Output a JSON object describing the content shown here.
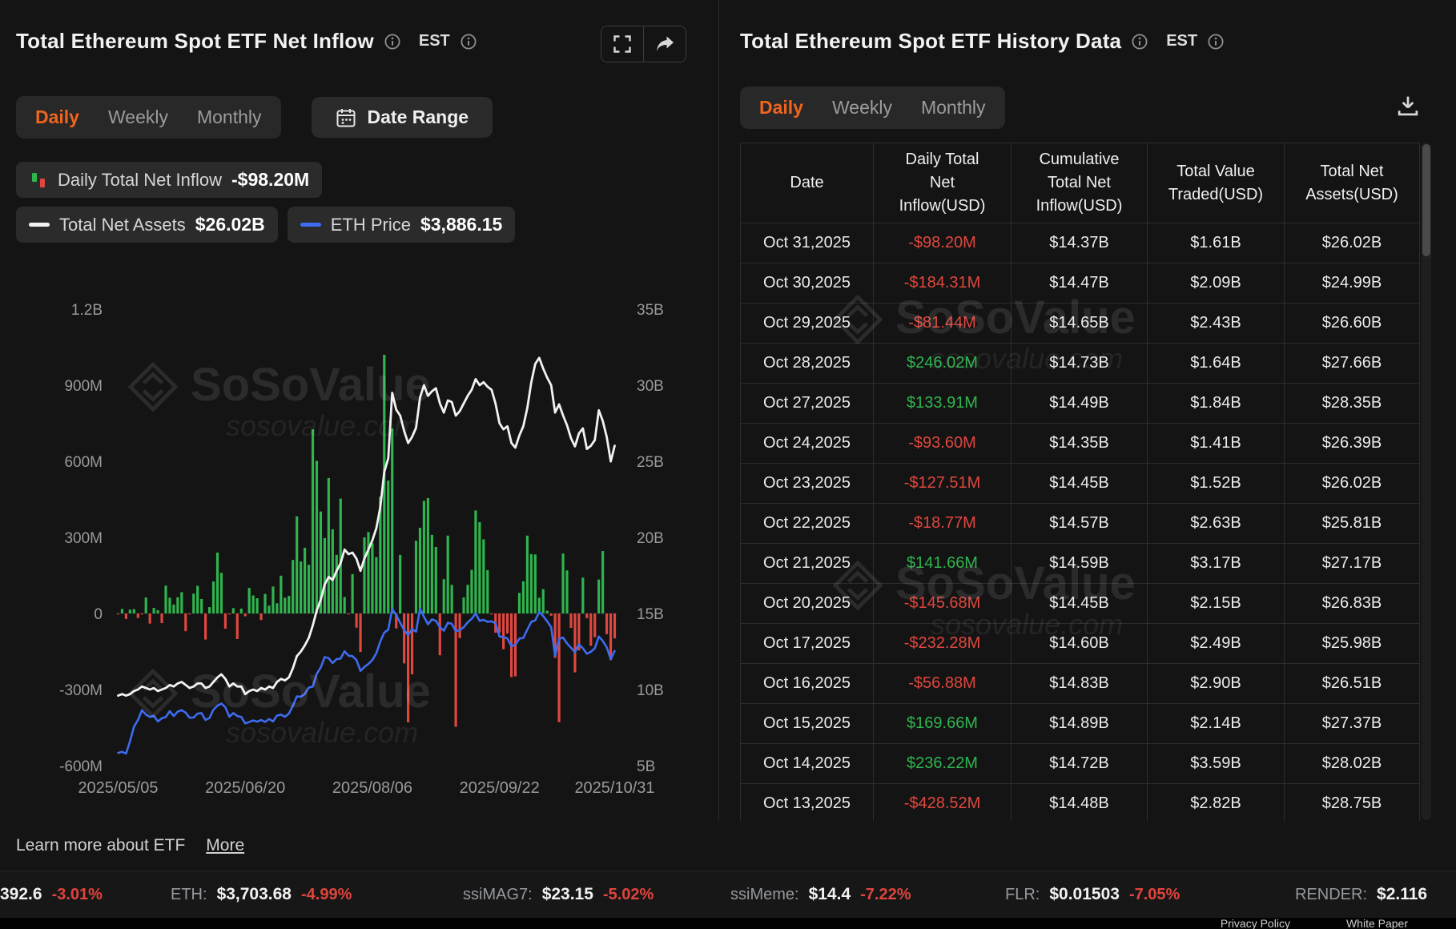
{
  "left_panel": {
    "title": "Total Ethereum Spot ETF Net Inflow",
    "timezone": "EST",
    "tabs": [
      "Daily",
      "Weekly",
      "Monthly"
    ],
    "active_tab": "Daily",
    "date_range": "Date Range",
    "legend": {
      "inflow_label": "Daily Total Net Inflow",
      "inflow_value": "-$98.20M",
      "assets_label": "Total Net Assets",
      "assets_value": "$26.02B",
      "eth_label": "ETH Price",
      "eth_value": "$3,886.15"
    }
  },
  "right_panel": {
    "title": "Total Ethereum Spot ETF History Data",
    "timezone": "EST",
    "tabs": [
      "Daily",
      "Weekly",
      "Monthly"
    ],
    "active_tab": "Daily",
    "table": {
      "headers": [
        "Date",
        "Daily Total\nNet\nInflow(USD)",
        "Cumulative\nTotal Net\nInflow(USD)",
        "Total Value\nTraded(USD)",
        "Total Net\nAssets(USD)"
      ],
      "rows": [
        [
          "Oct 31,2025",
          "-$98.20M",
          "$14.37B",
          "$1.61B",
          "$26.02B"
        ],
        [
          "Oct 30,2025",
          "-$184.31M",
          "$14.47B",
          "$2.09B",
          "$24.99B"
        ],
        [
          "Oct 29,2025",
          "-$81.44M",
          "$14.65B",
          "$2.43B",
          "$26.60B"
        ],
        [
          "Oct 28,2025",
          "$246.02M",
          "$14.73B",
          "$1.64B",
          "$27.66B"
        ],
        [
          "Oct 27,2025",
          "$133.91M",
          "$14.49B",
          "$1.84B",
          "$28.35B"
        ],
        [
          "Oct 24,2025",
          "-$93.60M",
          "$14.35B",
          "$1.41B",
          "$26.39B"
        ],
        [
          "Oct 23,2025",
          "-$127.51M",
          "$14.45B",
          "$1.52B",
          "$26.02B"
        ],
        [
          "Oct 22,2025",
          "-$18.77M",
          "$14.57B",
          "$2.63B",
          "$25.81B"
        ],
        [
          "Oct 21,2025",
          "$141.66M",
          "$14.59B",
          "$3.17B",
          "$27.17B"
        ],
        [
          "Oct 20,2025",
          "-$145.68M",
          "$14.45B",
          "$2.15B",
          "$26.83B"
        ],
        [
          "Oct 17,2025",
          "-$232.28M",
          "$14.60B",
          "$2.49B",
          "$25.98B"
        ],
        [
          "Oct 16,2025",
          "-$56.88M",
          "$14.83B",
          "$2.90B",
          "$26.51B"
        ],
        [
          "Oct 15,2025",
          "$169.66M",
          "$14.89B",
          "$2.14B",
          "$27.37B"
        ],
        [
          "Oct 14,2025",
          "$236.22M",
          "$14.72B",
          "$3.59B",
          "$28.02B"
        ],
        [
          "Oct 13,2025",
          "-$428.52M",
          "$14.48B",
          "$2.82B",
          "$28.75B"
        ]
      ]
    }
  },
  "watermark": {
    "brand": "SoSoValue",
    "domain_text": "sosovalue.com"
  },
  "footer": {
    "learn_text": "Learn more about ETF",
    "more_label": "More",
    "links": [
      "Privacy Policy",
      "White Paper"
    ]
  },
  "ticker": {
    "items": [
      {
        "label": "",
        "value": "392.6",
        "change": "-3.01%"
      },
      {
        "label": "ETH:",
        "value": "$3,703.68",
        "change": "-4.99%"
      },
      {
        "label": "ssiMAG7:",
        "value": "$23.15",
        "change": "-5.02%"
      },
      {
        "label": "ssiMeme:",
        "value": "$14.4",
        "change": "-7.22%"
      },
      {
        "label": "FLR:",
        "value": "$0.01503",
        "change": "-7.05%"
      },
      {
        "label": "RENDER:",
        "value": "$2.116",
        "change": ""
      }
    ]
  },
  "colors": {
    "accent_orange": "#f0641d",
    "green": "#2fb54e",
    "red": "#e0473e",
    "blue": "#3e6cf0",
    "white_line": "#f2f2f2",
    "background": "#141414",
    "border": "#2d2d2d"
  },
  "chart_data": {
    "type": "bar+line",
    "title": "Total Ethereum Spot ETF Net Inflow",
    "grid": false,
    "legend_position": "top-left",
    "series": [
      {
        "name": "Daily Total Net Inflow",
        "type": "bar",
        "axis": "left",
        "unit": "USD millions",
        "key": "daily_net_inflow_musd"
      },
      {
        "name": "Total Net Assets",
        "type": "line",
        "axis": "right",
        "unit": "USD billions",
        "key": "total_net_assets_busd"
      },
      {
        "name": "ETH Price",
        "type": "line",
        "axis": "hidden",
        "unit": "USD",
        "key": "eth_price_usd"
      }
    ],
    "left_axis": {
      "min": -600,
      "max": 1200,
      "ticks": [
        {
          "value": 1200,
          "label": "1.2B"
        },
        {
          "value": 900,
          "label": "900M"
        },
        {
          "value": 600,
          "label": "600M"
        },
        {
          "value": 300,
          "label": "300M"
        },
        {
          "value": 0,
          "label": "0"
        },
        {
          "value": -300,
          "label": "-300M"
        },
        {
          "value": -600,
          "label": "-600M"
        }
      ]
    },
    "right_axis": {
      "min": 5,
      "max": 35,
      "ticks": [
        {
          "value": 35,
          "label": "35B"
        },
        {
          "value": 30,
          "label": "30B"
        },
        {
          "value": 25,
          "label": "25B"
        },
        {
          "value": 20,
          "label": "20B"
        },
        {
          "value": 15,
          "label": "15B"
        },
        {
          "value": 10,
          "label": "10B"
        },
        {
          "value": 5,
          "label": "5B"
        }
      ]
    },
    "eth_price_mapping": {
      "domain_usd": [
        1550,
        10850
      ],
      "maps_to_right_axis_busd": [
        5,
        35
      ]
    },
    "x_label_ticks": [
      {
        "label": "2025/05/05",
        "index": 0
      },
      {
        "label": "2025/06/20",
        "index": 32
      },
      {
        "label": "2025/08/06",
        "index": 64
      },
      {
        "label": "2025/09/22",
        "index": 96
      },
      {
        "label": "2025/10/31",
        "index": 125
      }
    ],
    "dates": [
      "05/05",
      "05/06",
      "05/07",
      "05/08",
      "05/09",
      "05/12",
      "05/13",
      "05/14",
      "05/15",
      "05/16",
      "05/19",
      "05/20",
      "05/21",
      "05/22",
      "05/23",
      "05/27",
      "05/28",
      "05/29",
      "05/30",
      "06/02",
      "06/03",
      "06/04",
      "06/05",
      "06/06",
      "06/09",
      "06/10",
      "06/11",
      "06/12",
      "06/13",
      "06/16",
      "06/17",
      "06/18",
      "06/20",
      "06/23",
      "06/24",
      "06/25",
      "06/26",
      "06/27",
      "06/30",
      "07/01",
      "07/02",
      "07/03",
      "07/07",
      "07/08",
      "07/09",
      "07/10",
      "07/11",
      "07/14",
      "07/15",
      "07/16",
      "07/17",
      "07/18",
      "07/21",
      "07/22",
      "07/23",
      "07/24",
      "07/25",
      "07/28",
      "07/29",
      "07/30",
      "07/31",
      "08/01",
      "08/04",
      "08/05",
      "08/06",
      "08/07",
      "08/08",
      "08/11",
      "08/12",
      "08/13",
      "08/14",
      "08/15",
      "08/18",
      "08/19",
      "08/20",
      "08/21",
      "08/22",
      "08/25",
      "08/26",
      "08/27",
      "08/28",
      "08/29",
      "09/02",
      "09/03",
      "09/04",
      "09/05",
      "09/08",
      "09/09",
      "09/10",
      "09/11",
      "09/12",
      "09/15",
      "09/16",
      "09/17",
      "09/18",
      "09/19",
      "09/22",
      "09/23",
      "09/24",
      "09/25",
      "09/26",
      "09/29",
      "09/30",
      "10/01",
      "10/02",
      "10/03",
      "10/06",
      "10/07",
      "10/08",
      "10/09",
      "10/10",
      "10/13",
      "10/14",
      "10/15",
      "10/16",
      "10/17",
      "10/20",
      "10/21",
      "10/22",
      "10/23",
      "10/24",
      "10/27",
      "10/28",
      "10/29",
      "10/30",
      "10/31"
    ],
    "daily_net_inflow_musd": [
      -2,
      18,
      -22,
      15,
      17,
      -18,
      -4,
      63,
      -40,
      22,
      13,
      -38,
      110,
      62,
      35,
      64,
      84,
      -70,
      -2,
      78,
      109,
      57,
      -103,
      25,
      126,
      240,
      160,
      -60,
      -2,
      21,
      -101,
      19,
      -11,
      101,
      71,
      60,
      -26,
      77,
      31,
      106,
      40,
      149,
      62,
      69,
      211,
      383,
      205,
      259,
      192,
      726,
      602,
      402,
      297,
      534,
      332,
      231,
      453,
      65,
      -1,
      155,
      -56,
      -152,
      300,
      321,
      277,
      222,
      461,
      1020,
      524,
      729,
      -59,
      231,
      -197,
      -429,
      -240,
      287,
      338,
      444,
      455,
      310,
      262,
      -165,
      135,
      307,
      113,
      -447,
      -97,
      63,
      113,
      172,
      406,
      360,
      292,
      171,
      -2,
      -76,
      -76,
      -141,
      -79,
      -251,
      -248,
      81,
      127,
      307,
      234,
      233,
      62,
      96,
      11,
      -9,
      -175,
      -428.52,
      236.22,
      169.66,
      -56.88,
      -232.28,
      -145.68,
      141.66,
      -18.77,
      -127.51,
      -93.6,
      133.91,
      246.02,
      -81.44,
      -184.31,
      -98.2
    ],
    "total_net_assets_busd": [
      9.6,
      9.7,
      9.6,
      9.7,
      9.9,
      10.0,
      10.2,
      10.1,
      10.0,
      10.1,
      9.9,
      10.0,
      10.1,
      10.3,
      10.2,
      10.4,
      10.5,
      10.3,
      10.1,
      10.2,
      10.4,
      10.4,
      10.1,
      10.2,
      10.5,
      10.8,
      11.0,
      10.7,
      10.2,
      10.4,
      10.2,
      10.2,
      9.7,
      9.9,
      10.0,
      9.9,
      10.1,
      10.0,
      10.2,
      10.1,
      10.5,
      10.7,
      10.6,
      10.8,
      11.4,
      12.2,
      12.5,
      12.9,
      13.4,
      14.2,
      15.2,
      15.9,
      16.9,
      17.4,
      17.2,
      17.8,
      18.3,
      19.2,
      18.9,
      19.0,
      18.6,
      17.8,
      18.6,
      19.2,
      19.8,
      20.6,
      22.0,
      24.3,
      25.2,
      29.5,
      28.4,
      28.0,
      27.0,
      26.2,
      26.6,
      27.2,
      29.2,
      30.0,
      29.3,
      29.6,
      29.8,
      28.8,
      28.2,
      29.0,
      28.9,
      28.0,
      28.3,
      28.8,
      29.3,
      29.7,
      30.4,
      30.0,
      30.2,
      29.9,
      29.7,
      28.8,
      27.5,
      27.1,
      27.3,
      26.2,
      25.9,
      26.7,
      27.3,
      28.5,
      30.2,
      31.4,
      31.8,
      31.1,
      30.5,
      30.0,
      28.2,
      28.75,
      28.02,
      27.37,
      26.51,
      25.98,
      26.83,
      27.17,
      25.81,
      26.02,
      26.39,
      28.35,
      27.66,
      26.6,
      24.99,
      26.02
    ],
    "eth_price_usd": [
      1810,
      1832,
      1795,
      2050,
      2345,
      2480,
      2680,
      2590,
      2540,
      2565,
      2450,
      2515,
      2540,
      2660,
      2560,
      2650,
      2680,
      2630,
      2525,
      2530,
      2610,
      2620,
      2480,
      2520,
      2690,
      2770,
      2815,
      2740,
      2545,
      2620,
      2560,
      2540,
      2410,
      2440,
      2470,
      2445,
      2480,
      2440,
      2500,
      2450,
      2570,
      2590,
      2545,
      2610,
      2770,
      2960,
      2955,
      3010,
      3140,
      3160,
      3420,
      3550,
      3760,
      3740,
      3640,
      3720,
      3730,
      3880,
      3790,
      3780,
      3700,
      3480,
      3560,
      3620,
      3700,
      3840,
      4080,
      4260,
      4320,
      4740,
      4620,
      4460,
      4310,
      4210,
      4330,
      4280,
      4750,
      4580,
      4430,
      4530,
      4500,
      4370,
      4300,
      4460,
      4440,
      4290,
      4310,
      4370,
      4470,
      4540,
      4650,
      4500,
      4520,
      4480,
      4490,
      4450,
      4180,
      4170,
      4140,
      3980,
      4010,
      4140,
      4150,
      4320,
      4480,
      4510,
      4680,
      4600,
      4490,
      4370,
      3790,
      4130,
      4160,
      4040,
      3950,
      3860,
      4020,
      3940,
      3830,
      3870,
      3940,
      4180,
      4090,
      3960,
      3720,
      3886.15
    ]
  }
}
